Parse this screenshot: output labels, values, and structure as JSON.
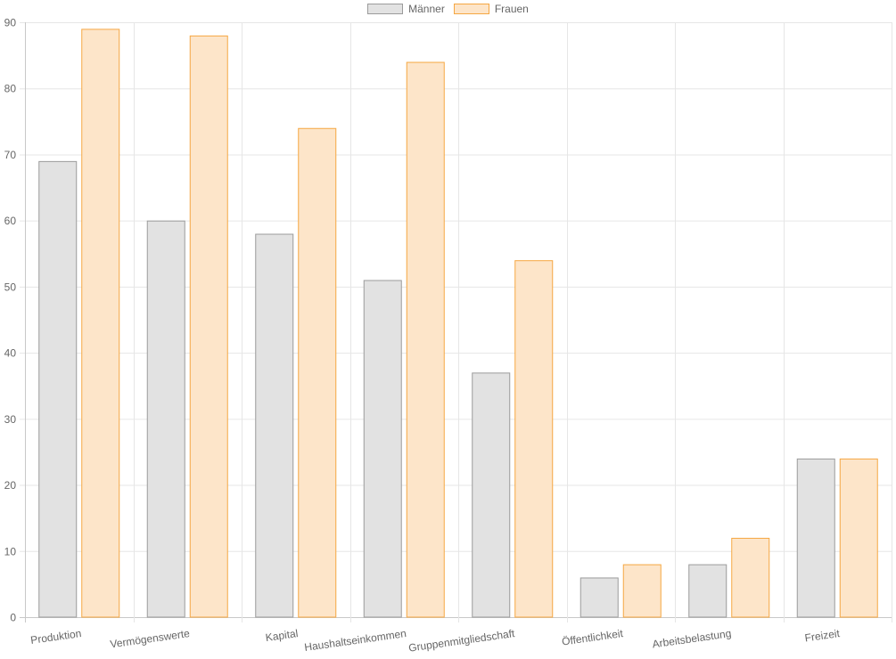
{
  "chart_data": {
    "type": "bar",
    "categories": [
      "Produktion",
      "Vermögenswerte",
      "Kapital",
      "Haushaltseinkommen",
      "Gruppenmitgliedschaft",
      "Öffentlichkeit",
      "Arbeitsbelastung",
      "Freizeit"
    ],
    "series": [
      {
        "name": "Männer",
        "values": [
          69,
          60,
          58,
          51,
          37,
          6,
          8,
          24
        ],
        "fill": "#e2e2e2",
        "stroke": "#9b9b9b"
      },
      {
        "name": "Frauen",
        "values": [
          89,
          88,
          74,
          84,
          54,
          8,
          12,
          24
        ],
        "fill": "#fde5c9",
        "stroke": "#f5a742"
      }
    ],
    "ylim": [
      0,
      90
    ],
    "yticks": [
      0,
      10,
      20,
      30,
      40,
      50,
      60,
      70,
      80,
      90
    ],
    "grid": true,
    "legend": "top-center",
    "title": "",
    "xlabel": "",
    "ylabel": ""
  }
}
